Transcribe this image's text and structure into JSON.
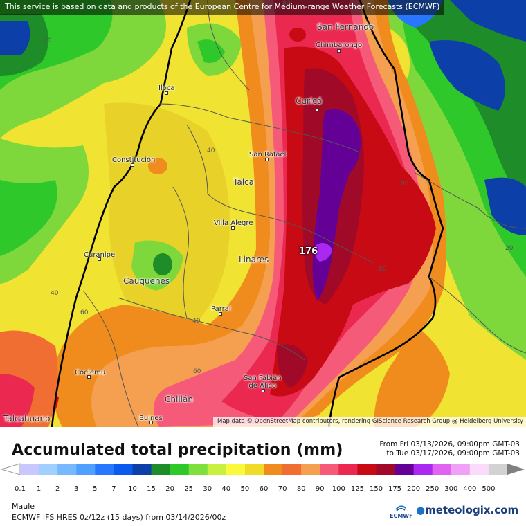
{
  "notice": "This service is based on data and products of the European Centre for Medium-range Weather Forecasts (ECMWF)",
  "attribution": "Map data © OpenStreetMap contributors, rendering GIScience Research Group @ Heidelberg University",
  "cities": {
    "san_fernando": "San Fernando",
    "chimbarongo": "Chimbarongo",
    "iloca": "Iloca",
    "curico": "Curicó",
    "constitucion": "Constitución",
    "san_rafael": "San Rafael",
    "talca": "Talca",
    "villa_alegre": "Villa Alegre",
    "curanipe": "Curanipe",
    "linares": "Linares",
    "cauquenes": "Cauquenes",
    "parral": "Parral",
    "coelemu": "Coelemu",
    "san_fabian": "San Fabián\nde Alico",
    "chillan": "Chillán",
    "talcahuano": "Talcahuano",
    "bulnes": "Bulnes"
  },
  "contour_labels": {
    "c20_nw": "20",
    "c80_top": "80",
    "c40_a": "40",
    "c80_e": "80",
    "c20_e": "20",
    "c80_s": "80",
    "c40_w": "40",
    "c60_w": "60",
    "c40_b": "40",
    "c60_s": "60"
  },
  "max_value": "176",
  "title": "Accumulated total precipitation (mm)",
  "from_line": "From Fri 03/13/2026, 09:00pm GMT-03",
  "to_line": "to Tue 03/17/2026, 09:00pm GMT-03",
  "scale": {
    "ticks": [
      "0.1",
      "1",
      "2",
      "3",
      "5",
      "7",
      "10",
      "15",
      "20",
      "25",
      "30",
      "40",
      "50",
      "60",
      "70",
      "80",
      "90",
      "100",
      "125",
      "150",
      "175",
      "200",
      "250",
      "300",
      "400",
      "500"
    ],
    "colors": [
      "#c8c8ff",
      "#a0d0ff",
      "#78b8ff",
      "#50a0ff",
      "#2878ff",
      "#0a5af0",
      "#0c3fa8",
      "#1e8c28",
      "#2ec82a",
      "#7ee03c",
      "#c8f040",
      "#fafa3c",
      "#f0dc28",
      "#f08c1e",
      "#f06e32",
      "#f5a050",
      "#f55a78",
      "#eb2850",
      "#c80a14",
      "#a00a28",
      "#640096",
      "#aa28f0",
      "#e164f0",
      "#f0a0f5",
      "#fadcfa",
      "#d2d2d2"
    ]
  },
  "region": "Maule",
  "model_line": "ECMWF IFS HRES 0z/12z (15 days) from  03/14/2026/00z",
  "ecmwf_label": "ECMWF",
  "brand": "meteologix.com"
}
